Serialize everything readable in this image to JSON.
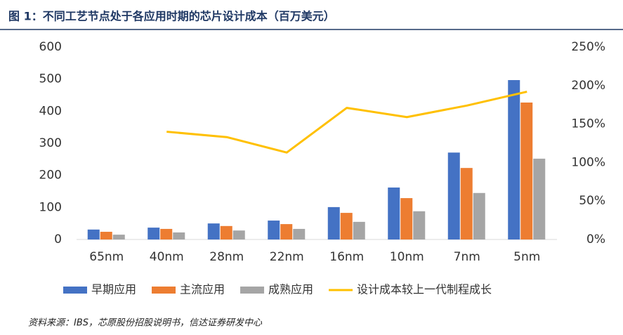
{
  "chart_data": {
    "type": "bar-line",
    "title": "图 1：不同工艺节点处于各应用时期的芯片设计成本（百万美元）",
    "source": "资料来源：IBS，芯原股份招股说明书，信达证券研发中心",
    "categories": [
      "65nm",
      "40nm",
      "28nm",
      "22nm",
      "16nm",
      "10nm",
      "7nm",
      "5nm"
    ],
    "series": [
      {
        "name": "早期应用",
        "color": "#4472c4",
        "values": [
          31,
          37,
          50,
          59,
          101,
          162,
          271,
          497
        ]
      },
      {
        "name": "主流应用",
        "color": "#ed7d31",
        "values": [
          24,
          33,
          42,
          48,
          83,
          129,
          223,
          427
        ]
      },
      {
        "name": "成熟应用",
        "color": "#a5a5a5",
        "values": [
          15,
          22,
          28,
          33,
          55,
          88,
          145,
          252
        ]
      },
      {
        "name": "设计成本较上一代制程成长",
        "color": "#ffc000",
        "axis": "y2",
        "type": "line",
        "values": [
          null,
          140,
          133,
          113,
          171,
          159,
          174,
          192
        ]
      }
    ],
    "ylim": [
      0,
      600
    ],
    "yticks": [
      0,
      100,
      200,
      300,
      400,
      500,
      600
    ],
    "y2lim": [
      0,
      250
    ],
    "y2ticks": [
      {
        "value": 0,
        "label": "0%"
      },
      {
        "value": 50,
        "label": "50%"
      },
      {
        "value": 100,
        "label": "100%"
      },
      {
        "value": 150,
        "label": "150%"
      },
      {
        "value": 200,
        "label": "200%"
      },
      {
        "value": 250,
        "label": "250%"
      }
    ],
    "legend": "bottom"
  }
}
